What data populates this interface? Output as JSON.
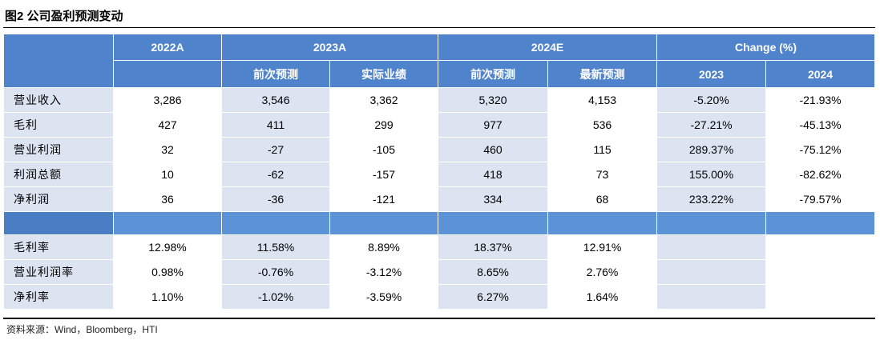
{
  "title": "图2  公司盈利预测变动",
  "source": "资料来源：Wind，Bloomberg，HTI",
  "header": {
    "groups": [
      "2022A",
      "2023A",
      "2024E",
      "Change (%)"
    ],
    "subs": [
      "前次预测",
      "实际业绩",
      "前次预测",
      "最新预测",
      "2023",
      "2024"
    ]
  },
  "rows": [
    {
      "label": "营业收入",
      "values": [
        "3,286",
        "3,546",
        "3,362",
        "5,320",
        "4,153",
        "-5.20%",
        "-21.93%"
      ]
    },
    {
      "label": "毛利",
      "values": [
        "427",
        "411",
        "299",
        "977",
        "536",
        "-27.21%",
        "-45.13%"
      ]
    },
    {
      "label": "营业利润",
      "values": [
        "32",
        "-27",
        "-105",
        "460",
        "115",
        "289.37%",
        "-75.12%"
      ]
    },
    {
      "label": "利润总额",
      "values": [
        "10",
        "-62",
        "-157",
        "418",
        "73",
        "155.00%",
        "-82.62%"
      ]
    },
    {
      "label": "净利润",
      "values": [
        "36",
        "-36",
        "-121",
        "334",
        "68",
        "233.22%",
        "-79.57%"
      ]
    }
  ],
  "ratio_rows": [
    {
      "label": "毛利率",
      "values": [
        "12.98%",
        "11.58%",
        "8.89%",
        "18.37%",
        "12.91%",
        "",
        ""
      ]
    },
    {
      "label": "营业利润率",
      "values": [
        "0.98%",
        "-0.76%",
        "-3.12%",
        "8.65%",
        "2.76%",
        "",
        ""
      ]
    },
    {
      "label": "净利率",
      "values": [
        "1.10%",
        "-1.02%",
        "-3.59%",
        "6.27%",
        "1.64%",
        "",
        ""
      ]
    }
  ]
}
